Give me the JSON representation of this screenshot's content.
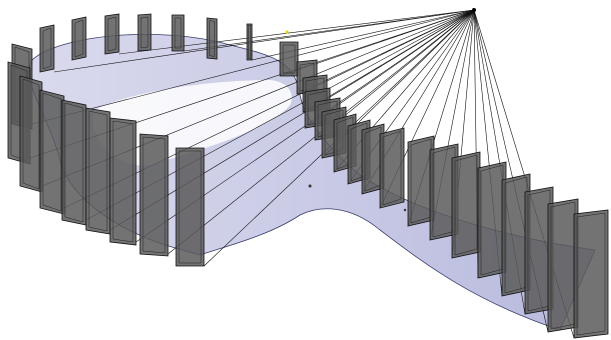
{
  "scene": {
    "description_visible_text": [],
    "colors": {
      "background": "#ffffff",
      "ribbon_fill": "#a9abd6",
      "ribbon_stroke": "#3a3c6a",
      "panel_fill": "#5a5a5a",
      "panel_edge": "#111111",
      "ray": "#111111",
      "marker_yellow": "#e6d600"
    },
    "panel_count": 40,
    "ray_count": 34
  }
}
